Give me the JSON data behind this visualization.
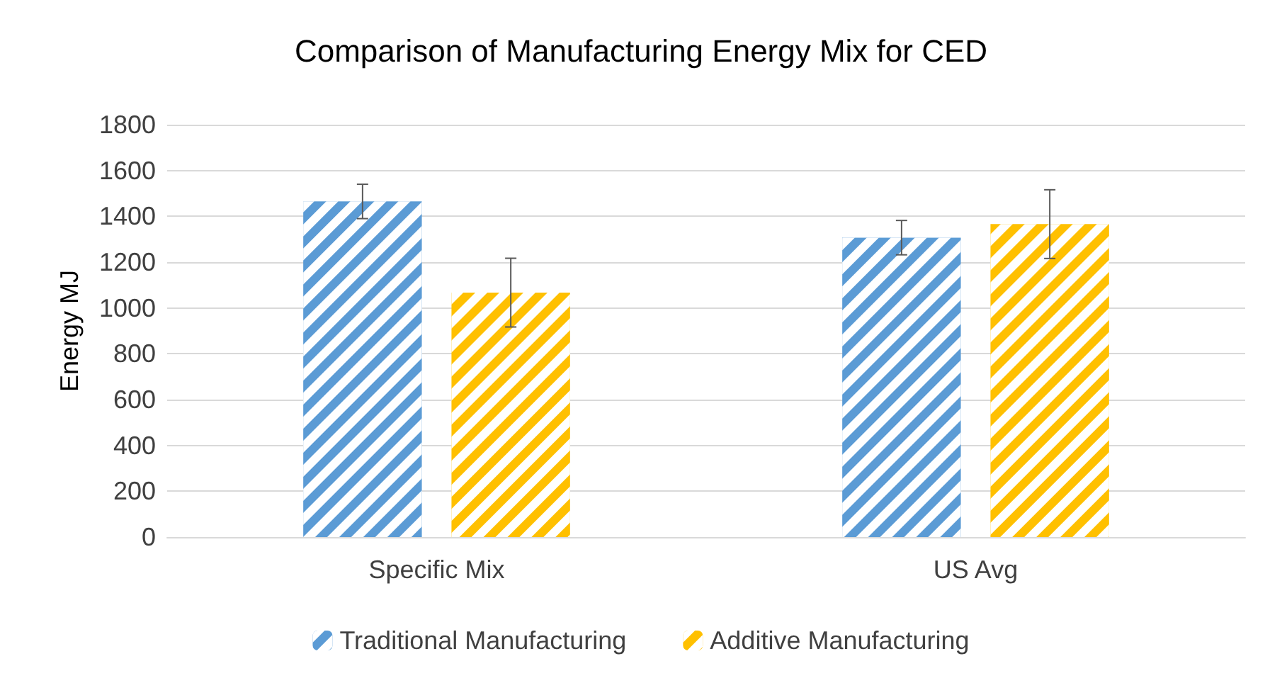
{
  "chart_data": {
    "type": "bar",
    "title": "Comparison of Manufacturing Energy Mix for CED",
    "ylabel": "Energy MJ",
    "categories": [
      "Specific Mix",
      "US Avg"
    ],
    "series": [
      {
        "name": "Traditional Manufacturing",
        "color": "#5b9bd5",
        "values": [
          1465,
          1307
        ],
        "errors": [
          75,
          75
        ]
      },
      {
        "name": "Additive Manufacturing",
        "color": "#ffc000",
        "values": [
          1067,
          1366
        ],
        "errors": [
          150,
          150
        ]
      }
    ],
    "ylim": [
      0,
      1800
    ],
    "yticks": [
      0,
      200,
      400,
      600,
      800,
      1000,
      1200,
      1400,
      1600,
      1800
    ],
    "grid": "y",
    "legend": "bottom"
  }
}
